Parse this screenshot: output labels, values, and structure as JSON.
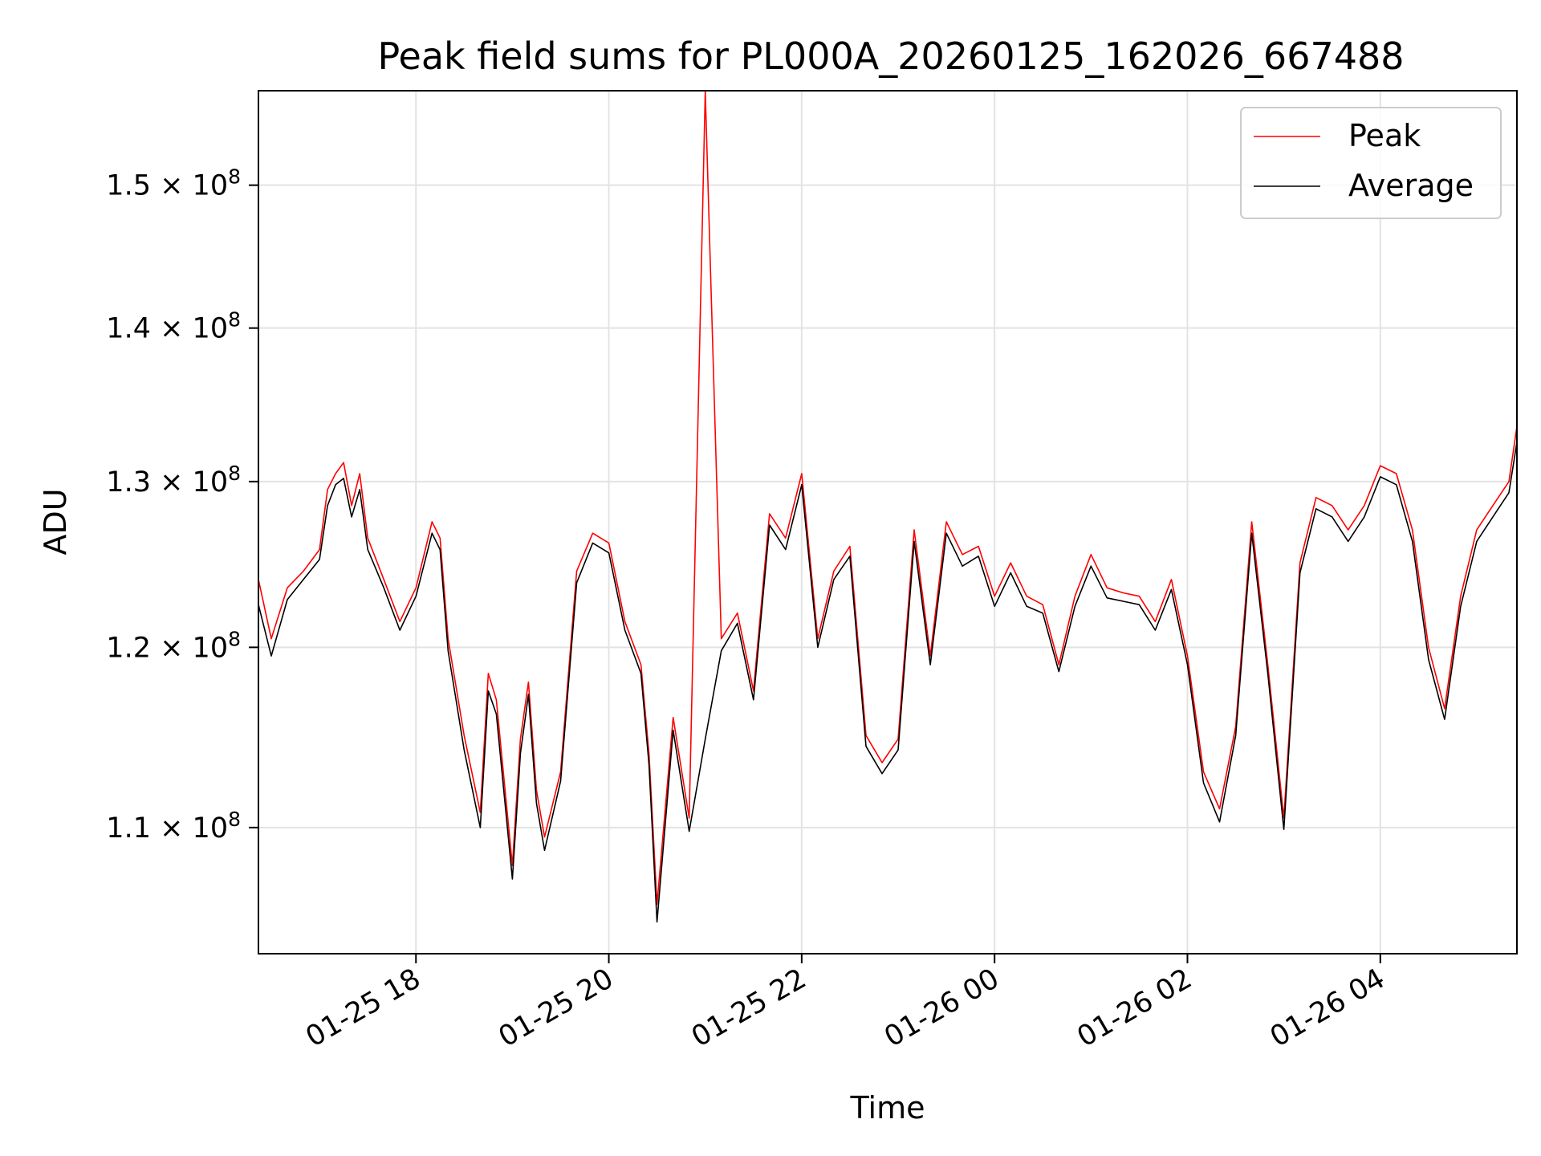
{
  "chart_data": {
    "type": "line",
    "title": "Peak field sums for PL000A_20260125_162026_667488",
    "xlabel": "Time",
    "ylabel": "ADU",
    "x_axis": {
      "kind": "datetime",
      "range": [
        "2026-01-25T16:22:00",
        "2026-01-26T05:25:00"
      ],
      "ticks": [
        {
          "value": "2026-01-25T18:00:00",
          "label": "01-25 18"
        },
        {
          "value": "2026-01-25T20:00:00",
          "label": "01-25 20"
        },
        {
          "value": "2026-01-25T22:00:00",
          "label": "01-25 22"
        },
        {
          "value": "2026-01-26T00:00:00",
          "label": "01-26 00"
        },
        {
          "value": "2026-01-26T02:00:00",
          "label": "01-26 02"
        },
        {
          "value": "2026-01-26T04:00:00",
          "label": "01-26 04"
        }
      ]
    },
    "y_axis": {
      "scale": "log",
      "range": [
        103500000,
        157000000
      ],
      "ticks": [
        {
          "value": 110000000,
          "mantissa": "1.1",
          "exp": "8"
        },
        {
          "value": 120000000,
          "mantissa": "1.2",
          "exp": "8"
        },
        {
          "value": 130000000,
          "mantissa": "1.3",
          "exp": "8"
        },
        {
          "value": 140000000,
          "mantissa": "1.4",
          "exp": "8"
        },
        {
          "value": 150000000,
          "mantissa": "1.5",
          "exp": "8"
        }
      ]
    },
    "grid": true,
    "legend": {
      "position": "top-right"
    },
    "x": [
      "2026-01-25T16:22:00",
      "2026-01-25T16:30:00",
      "2026-01-25T16:40:00",
      "2026-01-25T16:50:00",
      "2026-01-25T17:00:00",
      "2026-01-25T17:05:00",
      "2026-01-25T17:10:00",
      "2026-01-25T17:15:00",
      "2026-01-25T17:20:00",
      "2026-01-25T17:25:00",
      "2026-01-25T17:30:00",
      "2026-01-25T17:40:00",
      "2026-01-25T17:50:00",
      "2026-01-25T18:00:00",
      "2026-01-25T18:10:00",
      "2026-01-25T18:15:00",
      "2026-01-25T18:20:00",
      "2026-01-25T18:30:00",
      "2026-01-25T18:40:00",
      "2026-01-25T18:45:00",
      "2026-01-25T18:50:00",
      "2026-01-25T19:00:00",
      "2026-01-25T19:05:00",
      "2026-01-25T19:10:00",
      "2026-01-25T19:15:00",
      "2026-01-25T19:20:00",
      "2026-01-25T19:30:00",
      "2026-01-25T19:40:00",
      "2026-01-25T19:50:00",
      "2026-01-25T20:00:00",
      "2026-01-25T20:10:00",
      "2026-01-25T20:20:00",
      "2026-01-25T20:25:00",
      "2026-01-25T20:30:00",
      "2026-01-25T20:40:00",
      "2026-01-25T20:50:00",
      "2026-01-25T21:00:00",
      "2026-01-25T21:10:00",
      "2026-01-25T21:20:00",
      "2026-01-25T21:30:00",
      "2026-01-25T21:40:00",
      "2026-01-25T21:50:00",
      "2026-01-25T22:00:00",
      "2026-01-25T22:10:00",
      "2026-01-25T22:20:00",
      "2026-01-25T22:30:00",
      "2026-01-25T22:40:00",
      "2026-01-25T22:50:00",
      "2026-01-25T23:00:00",
      "2026-01-25T23:10:00",
      "2026-01-25T23:20:00",
      "2026-01-25T23:30:00",
      "2026-01-25T23:40:00",
      "2026-01-25T23:50:00",
      "2026-01-26T00:00:00",
      "2026-01-26T00:10:00",
      "2026-01-26T00:20:00",
      "2026-01-26T00:30:00",
      "2026-01-26T00:40:00",
      "2026-01-26T00:50:00",
      "2026-01-26T01:00:00",
      "2026-01-26T01:10:00",
      "2026-01-26T01:20:00",
      "2026-01-26T01:30:00",
      "2026-01-26T01:40:00",
      "2026-01-26T01:50:00",
      "2026-01-26T02:00:00",
      "2026-01-26T02:10:00",
      "2026-01-26T02:20:00",
      "2026-01-26T02:30:00",
      "2026-01-26T02:40:00",
      "2026-01-26T02:50:00",
      "2026-01-26T03:00:00",
      "2026-01-26T03:10:00",
      "2026-01-26T03:20:00",
      "2026-01-26T03:30:00",
      "2026-01-26T03:40:00",
      "2026-01-26T03:50:00",
      "2026-01-26T04:00:00",
      "2026-01-26T04:10:00",
      "2026-01-26T04:20:00",
      "2026-01-26T04:30:00",
      "2026-01-26T04:40:00",
      "2026-01-26T04:50:00",
      "2026-01-26T05:00:00",
      "2026-01-26T05:10:00",
      "2026-01-26T05:20:00",
      "2026-01-26T05:25:00"
    ],
    "series": [
      {
        "name": "Peak",
        "color": "#ff0000",
        "values": [
          124000000,
          120500000,
          123500000,
          124500000,
          125800000,
          129500000,
          130500000,
          131200000,
          128500000,
          130500000,
          126500000,
          124000000,
          121500000,
          123500000,
          127500000,
          126500000,
          120500000,
          115000000,
          110800000,
          118500000,
          117000000,
          108000000,
          114800000,
          118000000,
          112000000,
          109500000,
          113000000,
          124500000,
          126800000,
          126200000,
          121500000,
          119000000,
          114000000,
          106000000,
          116000000,
          110500000,
          157000000,
          120500000,
          122000000,
          117500000,
          128000000,
          126500000,
          130500000,
          120500000,
          124500000,
          126000000,
          115000000,
          113500000,
          114800000,
          127000000,
          119500000,
          127500000,
          125500000,
          126000000,
          123000000,
          125000000,
          123000000,
          122500000,
          119000000,
          123000000,
          125500000,
          123500000,
          123200000,
          123000000,
          121500000,
          124000000,
          119500000,
          113000000,
          111000000,
          115500000,
          127500000,
          119000000,
          110500000,
          125000000,
          129000000,
          128500000,
          127000000,
          128500000,
          131000000,
          130500000,
          127000000,
          120000000,
          116500000,
          123000000,
          127000000,
          128500000,
          130000000,
          133500000
        ]
      },
      {
        "name": "Average",
        "color": "#000000",
        "values": [
          122500000,
          119500000,
          122800000,
          124000000,
          125200000,
          128500000,
          129800000,
          130200000,
          127800000,
          129500000,
          125800000,
          123500000,
          121000000,
          123000000,
          126800000,
          125800000,
          119800000,
          114200000,
          110000000,
          117500000,
          116200000,
          107300000,
          114000000,
          117300000,
          111300000,
          108800000,
          112500000,
          123800000,
          126200000,
          125600000,
          121000000,
          118500000,
          113400000,
          105100000,
          115300000,
          109800000,
          114800000,
          119800000,
          121400000,
          117000000,
          127300000,
          125800000,
          129800000,
          120000000,
          124000000,
          125400000,
          114400000,
          112900000,
          114200000,
          126300000,
          119000000,
          126800000,
          124800000,
          125400000,
          122400000,
          124400000,
          122400000,
          122000000,
          118600000,
          122400000,
          124800000,
          122900000,
          122700000,
          122500000,
          121000000,
          123400000,
          119000000,
          112400000,
          110300000,
          115000000,
          126800000,
          118500000,
          109900000,
          124400000,
          128300000,
          127800000,
          126300000,
          127800000,
          130300000,
          129800000,
          126300000,
          119300000,
          115900000,
          122400000,
          126300000,
          127800000,
          129300000,
          132500000
        ]
      }
    ]
  }
}
